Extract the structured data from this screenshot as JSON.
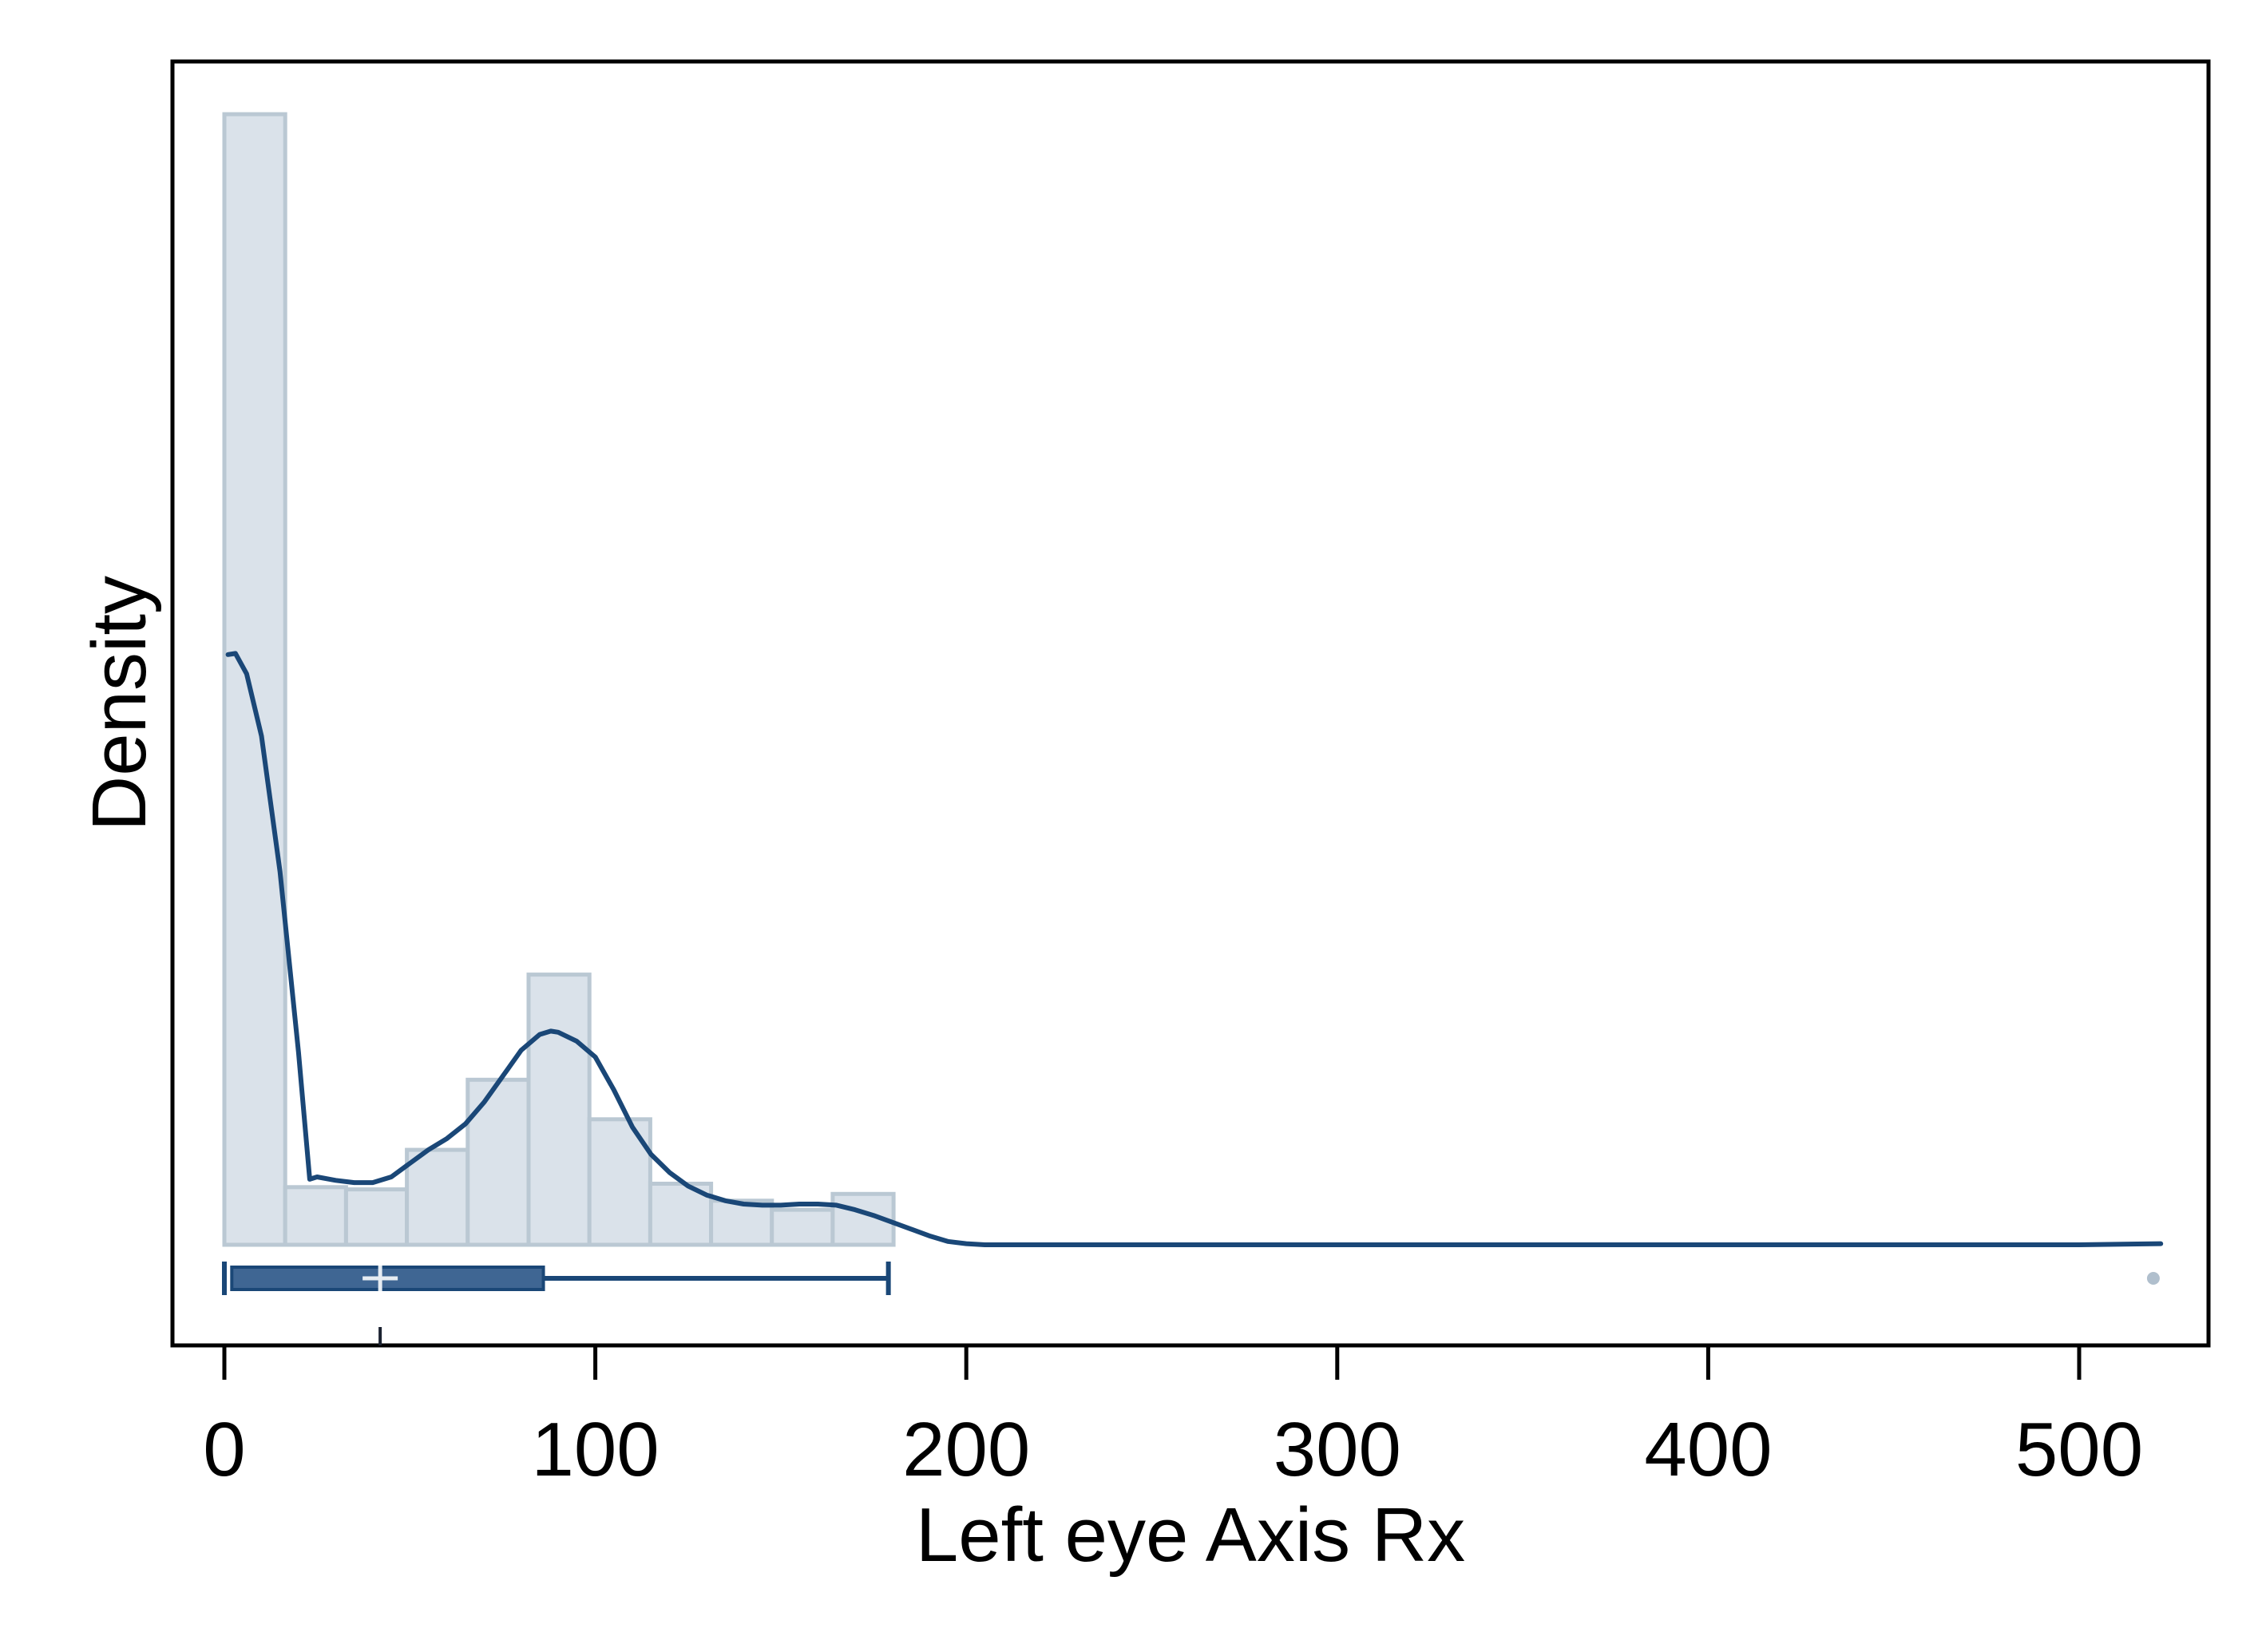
{
  "chart_data": {
    "type": "histogram",
    "title": "",
    "xlabel": "Left eye Axis Rx",
    "ylabel": "Density",
    "xlim": [
      -14,
      540
    ],
    "x_ticks": [
      0,
      100,
      200,
      300,
      400,
      500
    ],
    "x_tick_labels": [
      "0",
      "100",
      "200",
      "300",
      "400",
      "500"
    ],
    "y_ticks_labeled": false,
    "density_max_relative": 1.0,
    "histogram": {
      "bin_width": 16.4,
      "bins": [
        {
          "start": 0.0,
          "end": 16.4,
          "density": 1.0
        },
        {
          "start": 16.4,
          "end": 32.8,
          "density": 0.051
        },
        {
          "start": 32.8,
          "end": 49.2,
          "density": 0.049
        },
        {
          "start": 49.2,
          "end": 65.6,
          "density": 0.084
        },
        {
          "start": 65.6,
          "end": 82.0,
          "density": 0.146
        },
        {
          "start": 82.0,
          "end": 98.4,
          "density": 0.239
        },
        {
          "start": 98.4,
          "end": 114.8,
          "density": 0.111
        },
        {
          "start": 114.8,
          "end": 131.2,
          "density": 0.054
        },
        {
          "start": 131.2,
          "end": 147.6,
          "density": 0.039
        },
        {
          "start": 147.6,
          "end": 164.0,
          "density": 0.031
        },
        {
          "start": 164.0,
          "end": 180.4,
          "density": 0.045
        }
      ]
    },
    "kde": {
      "name": "",
      "x": [
        1,
        3,
        6,
        10,
        15,
        20,
        23,
        25,
        30,
        35,
        40,
        45,
        50,
        55,
        60,
        65,
        70,
        75,
        80,
        85,
        88,
        90,
        95,
        100,
        105,
        110,
        115,
        120,
        125,
        130,
        135,
        140,
        145,
        150,
        155,
        160,
        165,
        170,
        175,
        180,
        185,
        190,
        195,
        200,
        205,
        250,
        300,
        350,
        400,
        450,
        500,
        522
      ],
      "y": [
        0.522,
        0.523,
        0.505,
        0.45,
        0.33,
        0.17,
        0.058,
        0.06,
        0.057,
        0.055,
        0.055,
        0.06,
        0.072,
        0.084,
        0.094,
        0.107,
        0.126,
        0.149,
        0.172,
        0.186,
        0.189,
        0.188,
        0.18,
        0.166,
        0.137,
        0.104,
        0.08,
        0.064,
        0.052,
        0.044,
        0.039,
        0.036,
        0.035,
        0.035,
        0.036,
        0.036,
        0.035,
        0.031,
        0.026,
        0.02,
        0.014,
        0.008,
        0.003,
        0.001,
        0.0,
        0.0,
        0.0,
        0.0,
        0.0,
        0.0,
        0.0,
        0.001
      ]
    },
    "boxplot": {
      "min": 0,
      "q1": 2,
      "median": 42,
      "q3": 86,
      "max": 179,
      "outliers": [
        520
      ]
    },
    "grid": false,
    "legend": "none",
    "colors": {
      "hist_fill": "#dae2ea",
      "hist_stroke": "#bac8d3",
      "line": "#1a4777",
      "box_fill": "#3f6693",
      "outlier": "#b0bfcd",
      "axis": "#000000"
    }
  }
}
